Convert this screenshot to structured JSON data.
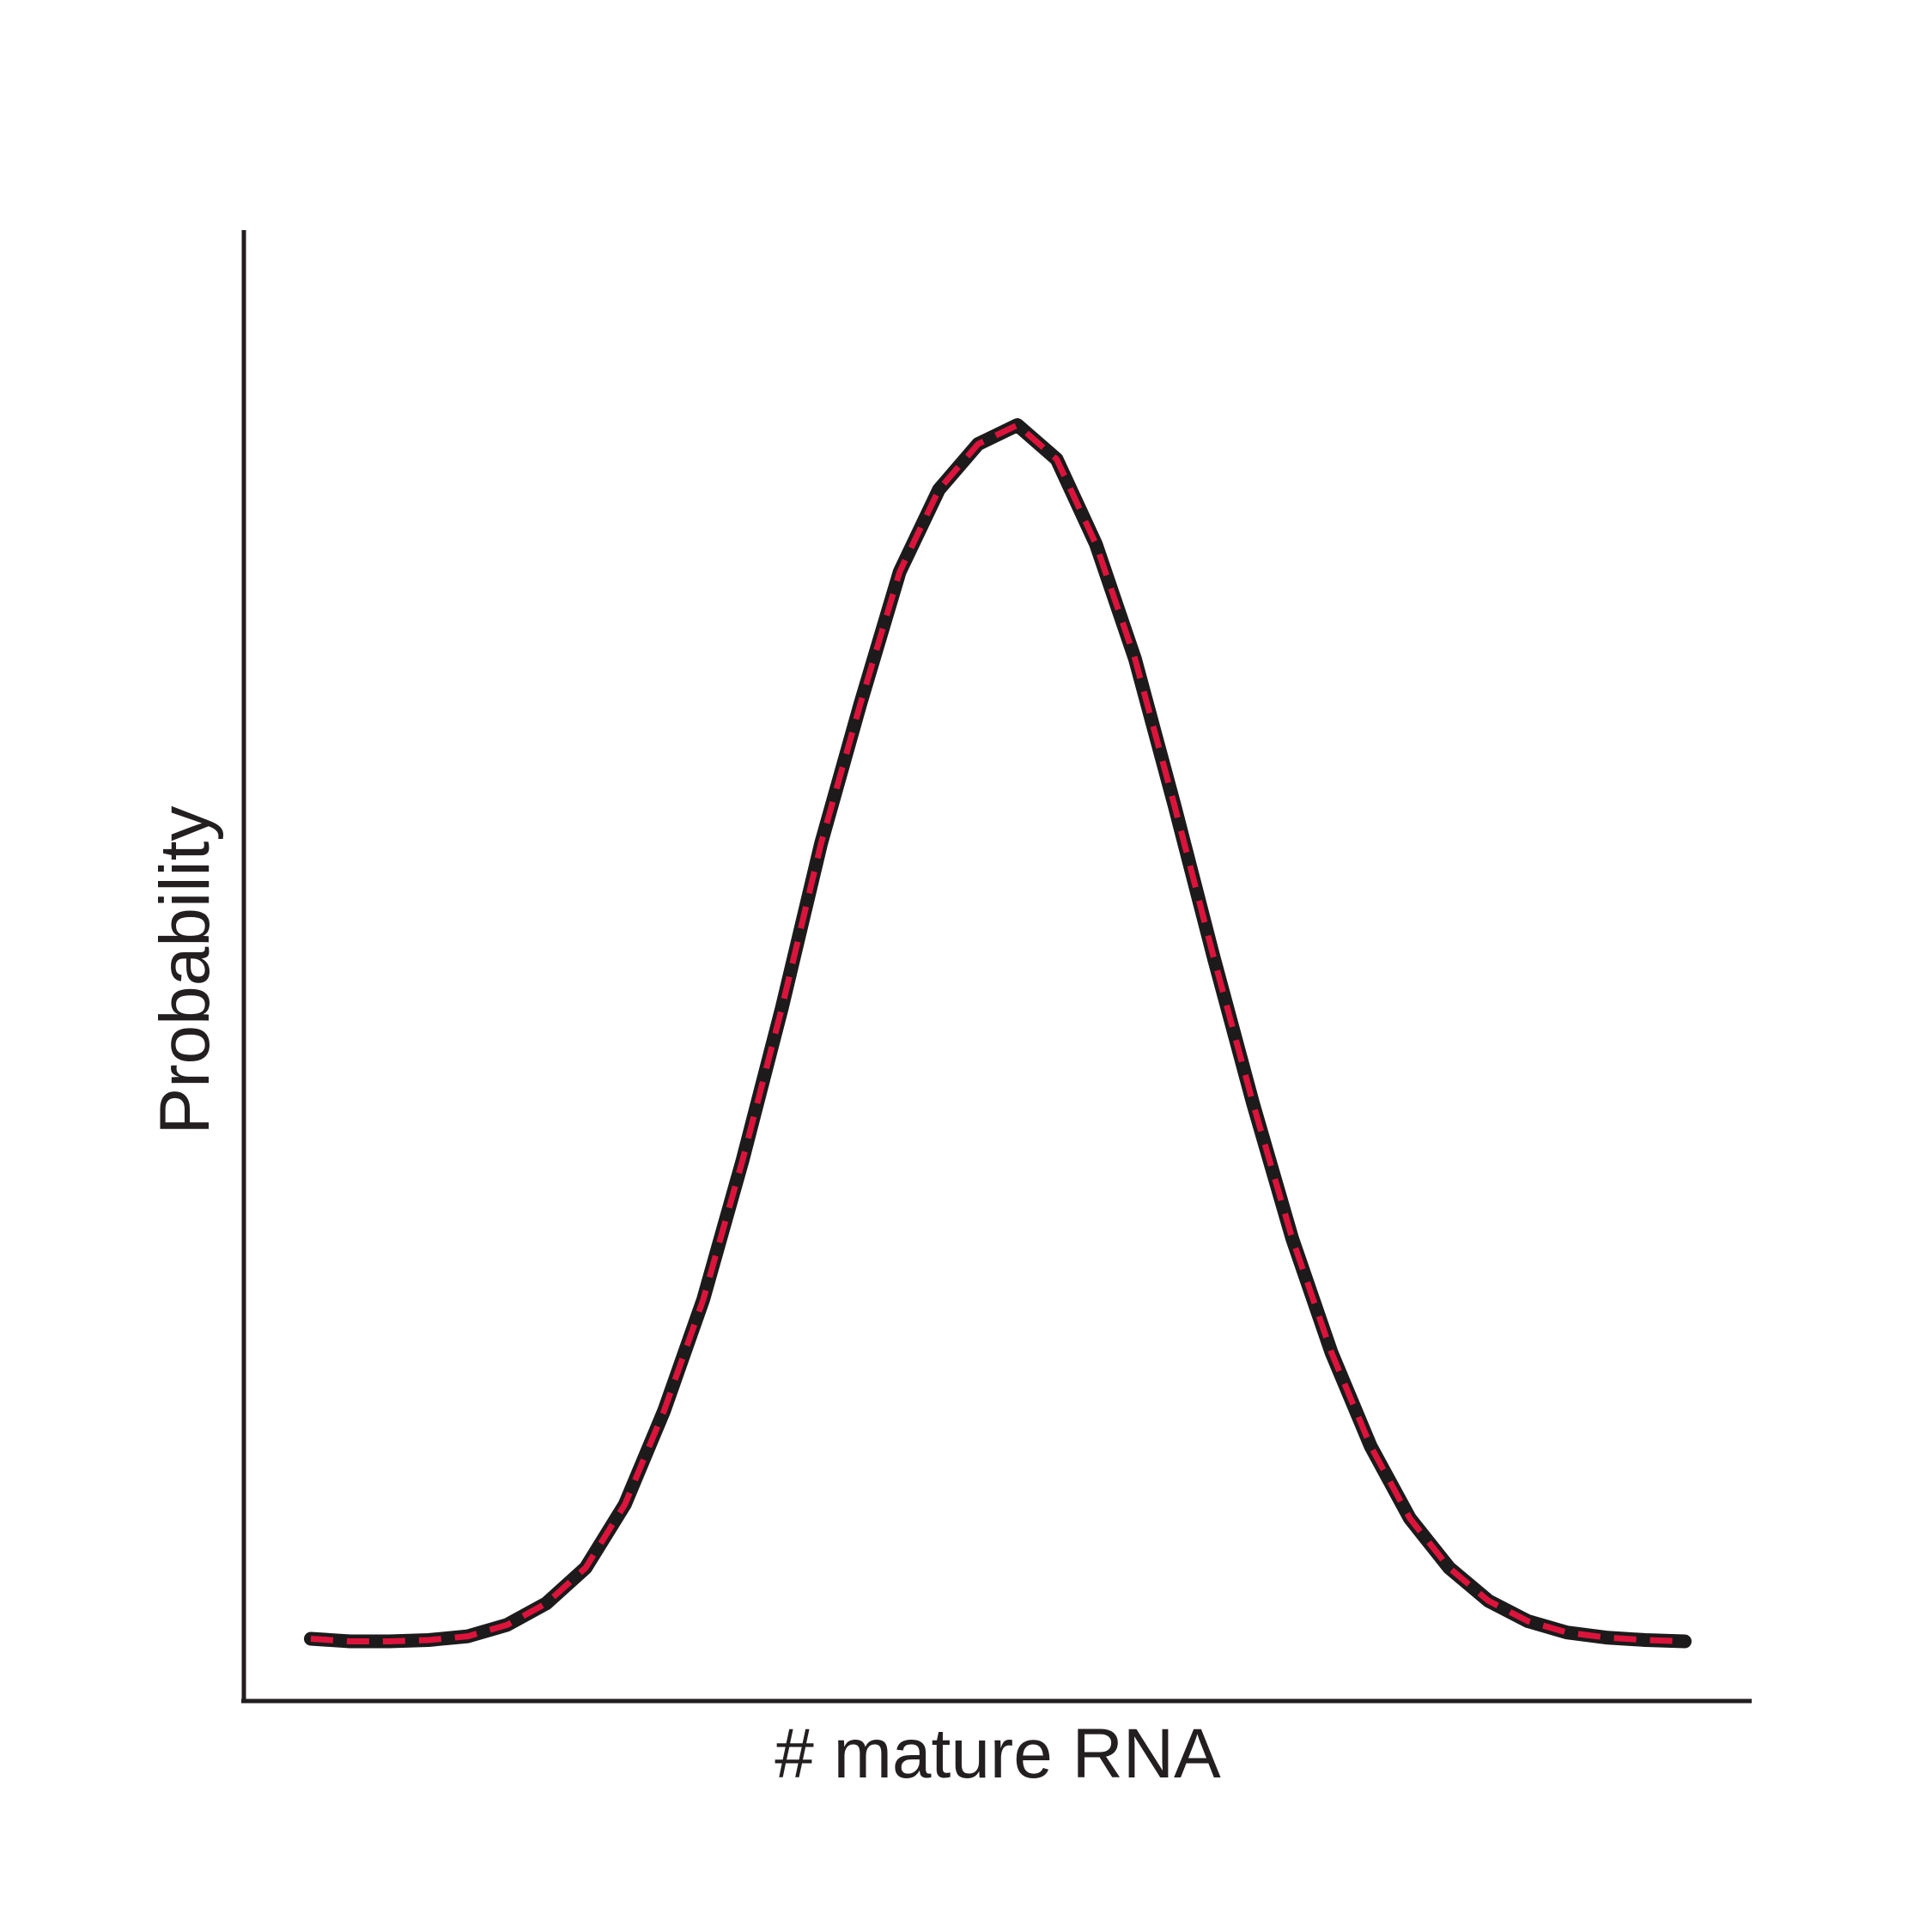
{
  "chart_data": {
    "type": "line",
    "title": "",
    "xlabel": "# mature RNA",
    "ylabel": "Probability",
    "grid": false,
    "legend": "none",
    "xlim": [
      0,
      36
    ],
    "ylim": [
      0,
      1.06
    ],
    "series": [
      {
        "style": "solid",
        "color": "#1c1a1a",
        "x": [
          0,
          1,
          2,
          3,
          4,
          5,
          6,
          7,
          8,
          9,
          10,
          11,
          12,
          13,
          14,
          15,
          16,
          17,
          18,
          19,
          20,
          21,
          22,
          23,
          24,
          25,
          26,
          27,
          28,
          29,
          30,
          31,
          32,
          33,
          34,
          35
        ],
        "y": [
          0.002,
          0.0,
          0.0,
          0.001,
          0.004,
          0.013,
          0.03,
          0.058,
          0.108,
          0.182,
          0.27,
          0.38,
          0.5,
          0.63,
          0.74,
          0.844,
          0.909,
          0.945,
          0.96,
          0.933,
          0.866,
          0.775,
          0.66,
          0.54,
          0.425,
          0.318,
          0.228,
          0.154,
          0.097,
          0.058,
          0.032,
          0.016,
          0.007,
          0.003,
          0.001,
          0.0
        ]
      },
      {
        "style": "dashed",
        "color": "#dc143c",
        "x": [
          0,
          1,
          2,
          3,
          4,
          5,
          6,
          7,
          8,
          9,
          10,
          11,
          12,
          13,
          14,
          15,
          16,
          17,
          18,
          19,
          20,
          21,
          22,
          23,
          24,
          25,
          26,
          27,
          28,
          29,
          30,
          31,
          32,
          33,
          34,
          35
        ],
        "y": [
          0.002,
          0.0,
          0.0,
          0.001,
          0.004,
          0.013,
          0.03,
          0.058,
          0.108,
          0.182,
          0.27,
          0.38,
          0.5,
          0.63,
          0.74,
          0.844,
          0.909,
          0.945,
          0.96,
          0.933,
          0.866,
          0.775,
          0.66,
          0.54,
          0.425,
          0.318,
          0.228,
          0.154,
          0.097,
          0.058,
          0.032,
          0.016,
          0.007,
          0.003,
          0.001,
          0.0
        ]
      }
    ]
  },
  "colors": {
    "axis": "#231f20",
    "text": "#231f20"
  }
}
